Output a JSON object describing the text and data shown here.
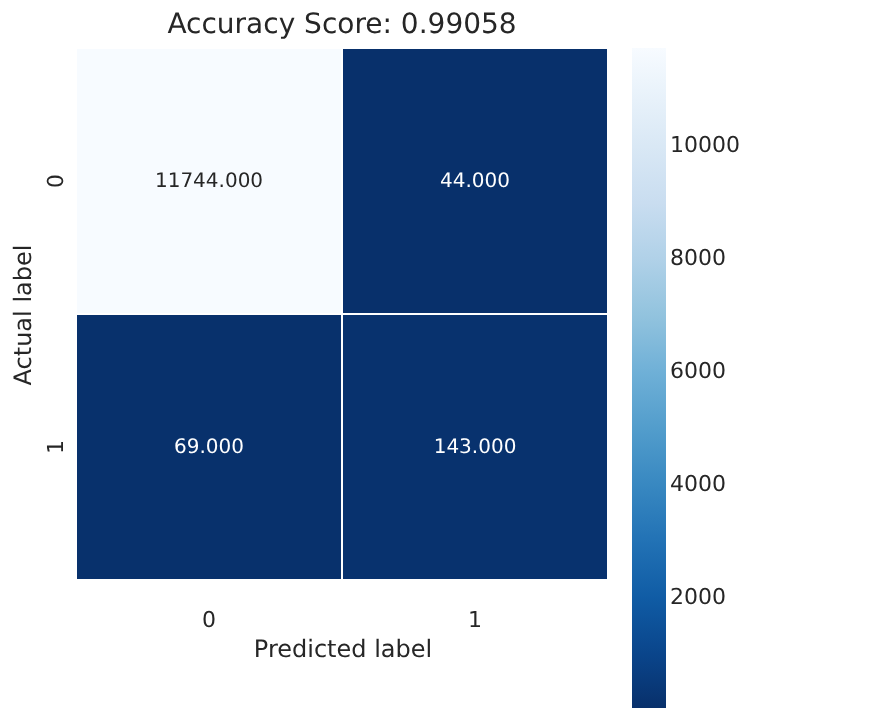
{
  "chart_data": {
    "type": "heatmap",
    "title": "Accuracy Score: 0.99058",
    "xlabel": "Predicted label",
    "ylabel": "Actual label",
    "categories": [
      "0",
      "1"
    ],
    "y_categories": [
      "0",
      "1"
    ],
    "cells": [
      [
        11744,
        44
      ],
      [
        69,
        143
      ]
    ],
    "cell_labels": [
      [
        "11744.000",
        "44.000"
      ],
      [
        "69.000",
        "143.000"
      ]
    ],
    "clim": [
      44,
      11744
    ],
    "cticks": [
      2000,
      4000,
      6000,
      8000,
      10000
    ]
  }
}
